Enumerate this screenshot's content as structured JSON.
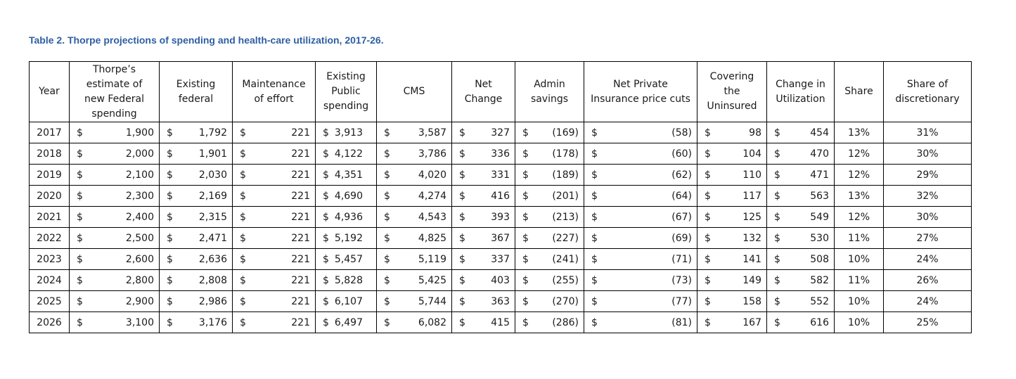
{
  "caption": "Table 2.  Thorpe projections of spending and health-care utilization, 2017-26.",
  "headers": [
    "Year",
    "Thorpe’s\nestimate of\nnew Federal\nspending",
    "Existing\nfederal",
    "Maintenance\nof effort",
    "Existing\nPublic\nspending",
    "CMS",
    "Net\nChange",
    "Admin\nsavings",
    "Net Private\nInsurance price cuts",
    "Covering\nthe\nUninsured",
    "Change in\nUtilization",
    "Share",
    "Share of\ndiscretionary"
  ],
  "currency_symbol": "$",
  "rows": [
    [
      "2017",
      "1,900",
      "1,792",
      "221",
      "3,913",
      "3,587",
      "327",
      "(169)",
      "(58)",
      "98",
      "454",
      "13%",
      "31%"
    ],
    [
      "2018",
      "2,000",
      "1,901",
      "221",
      "4,122",
      "3,786",
      "336",
      "(178)",
      "(60)",
      "104",
      "470",
      "12%",
      "30%"
    ],
    [
      "2019",
      "2,100",
      "2,030",
      "221",
      "4,351",
      "4,020",
      "331",
      "(189)",
      "(62)",
      "110",
      "471",
      "12%",
      "29%"
    ],
    [
      "2020",
      "2,300",
      "2,169",
      "221",
      "4,690",
      "4,274",
      "416",
      "(201)",
      "(64)",
      "117",
      "563",
      "13%",
      "32%"
    ],
    [
      "2021",
      "2,400",
      "2,315",
      "221",
      "4,936",
      "4,543",
      "393",
      "(213)",
      "(67)",
      "125",
      "549",
      "12%",
      "30%"
    ],
    [
      "2022",
      "2,500",
      "2,471",
      "221",
      "5,192",
      "4,825",
      "367",
      "(227)",
      "(69)",
      "132",
      "530",
      "11%",
      "27%"
    ],
    [
      "2023",
      "2,600",
      "2,636",
      "221",
      "5,457",
      "5,119",
      "337",
      "(241)",
      "(71)",
      "141",
      "508",
      "10%",
      "24%"
    ],
    [
      "2024",
      "2,800",
      "2,808",
      "221",
      "5,828",
      "5,425",
      "403",
      "(255)",
      "(73)",
      "149",
      "582",
      "11%",
      "26%"
    ],
    [
      "2025",
      "2,900",
      "2,986",
      "221",
      "6,107",
      "5,744",
      "363",
      "(270)",
      "(77)",
      "158",
      "552",
      "10%",
      "24%"
    ],
    [
      "2026",
      "3,100",
      "3,176",
      "221",
      "6,497",
      "6,082",
      "415",
      "(286)",
      "(81)",
      "167",
      "616",
      "10%",
      "25%"
    ]
  ]
}
